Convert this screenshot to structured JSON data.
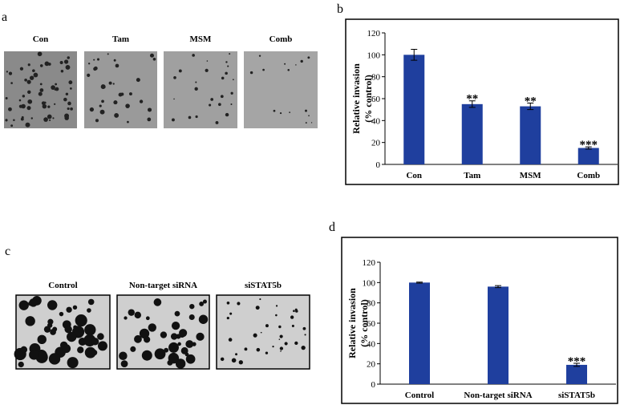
{
  "figure": {
    "panel_labels": [
      "a",
      "b",
      "c",
      "d"
    ],
    "images_a": [
      "Con",
      "Tam",
      "MSM",
      "Comb"
    ],
    "images_c": [
      "Control",
      "Non-target siRNA",
      "siSTAT5b"
    ]
  },
  "chart_data": [
    {
      "type": "bar",
      "y_label": [
        "Relative invasion",
        "(% control)"
      ],
      "categories": [
        "Con",
        "Tam",
        "MSM",
        "Comb"
      ],
      "values": [
        100,
        55,
        53,
        15
      ],
      "errors": [
        5,
        3,
        3,
        1
      ],
      "significance": [
        null,
        "**",
        "**",
        "***"
      ],
      "color": "#1f3f9e",
      "ylim": [
        0,
        120
      ],
      "yticks": [
        0,
        20,
        40,
        60,
        80,
        100,
        120
      ]
    },
    {
      "type": "bar",
      "y_label": [
        "Relative invasion",
        "(% control)"
      ],
      "categories": [
        "Control",
        "Non-target siRNA",
        "siSTAT5b"
      ],
      "values": [
        100,
        96,
        19
      ],
      "errors": [
        0.5,
        1,
        1.5
      ],
      "significance": [
        null,
        null,
        "***"
      ],
      "color": "#1f3f9e",
      "ylim": [
        0,
        120
      ],
      "yticks": [
        0,
        20,
        40,
        60,
        80,
        100,
        120
      ]
    }
  ]
}
